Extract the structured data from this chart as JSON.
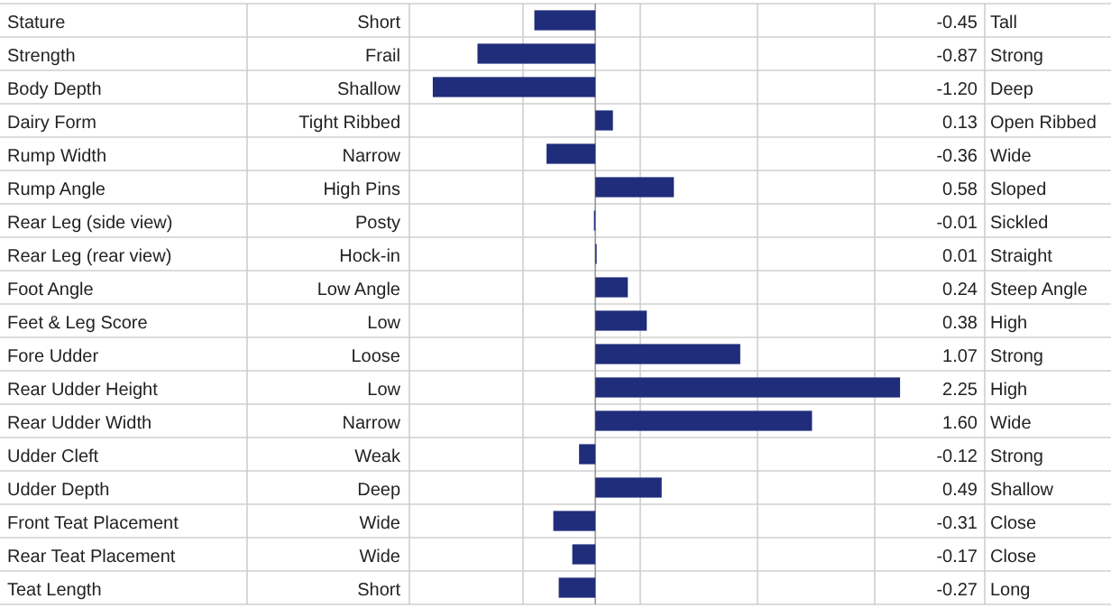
{
  "chart_data": {
    "type": "bar",
    "orientation": "horizontal",
    "categories": [
      "Stature",
      "Strength",
      "Body Depth",
      "Dairy Form",
      "Rump Width",
      "Rump Angle",
      "Rear Leg (side view)",
      "Rear Leg (rear view)",
      "Foot Angle",
      "Feet & Leg Score",
      "Fore Udder",
      "Rear Udder Height",
      "Rear Udder Width",
      "Udder Cleft",
      "Udder Depth",
      "Front Teat Placement",
      "Rear Teat Placement",
      "Teat Length"
    ],
    "values": [
      -0.45,
      -0.87,
      -1.2,
      0.13,
      -0.36,
      0.58,
      -0.01,
      0.01,
      0.24,
      0.38,
      1.07,
      2.25,
      1.6,
      -0.12,
      0.49,
      -0.31,
      -0.17,
      -0.27
    ],
    "value_labels": [
      "-0.45",
      "-0.87",
      "-1.20",
      "0.13",
      "-0.36",
      "0.58",
      "-0.01",
      "0.01",
      "0.24",
      "0.38",
      "1.07",
      "2.25",
      "1.60",
      "-0.12",
      "0.49",
      "-0.31",
      "-0.17",
      "-0.27"
    ],
    "color": "#1f2d7b",
    "grid": "y",
    "annotations": [
      "Short",
      "Tall",
      "Frail",
      "Strong",
      "Shallow",
      "Deep",
      "Tight Ribbed",
      "Open Ribbed",
      "Narrow",
      "Wide",
      "High Pins",
      "Sloped",
      "Posty",
      "Sickled",
      "Hock-in",
      "Straight",
      "Low Angle",
      "Steep Angle",
      "Low",
      "High",
      "Loose",
      "Strong",
      "Low",
      "High",
      "Narrow",
      "Wide",
      "Weak",
      "Strong",
      "Deep",
      "Shallow",
      "Wide",
      "Close",
      "Wide",
      "Close",
      "Short",
      "Long"
    ]
  }
}
